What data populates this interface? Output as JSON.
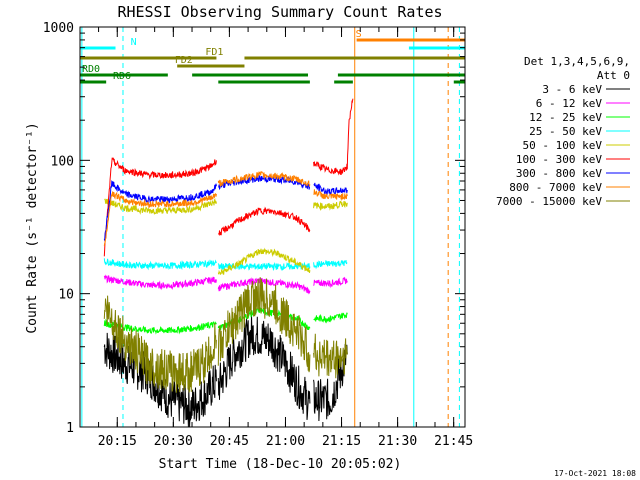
{
  "chart_data": {
    "type": "line",
    "title": "RHESSI Observing Summary Count Rates",
    "xlabel": "Start Time (18-Dec-10 20:05:02)",
    "ylabel": "Count Rate (s⁻¹ detector⁻¹)",
    "yscale": "log",
    "ylim": [
      1,
      1000
    ],
    "xlim_minutes": [
      0,
      103
    ],
    "x_ticks": [
      {
        "label": "20:15",
        "minutes": 9.97
      },
      {
        "label": "20:30",
        "minutes": 24.97
      },
      {
        "label": "20:45",
        "minutes": 39.97
      },
      {
        "label": "21:00",
        "minutes": 54.97
      },
      {
        "label": "21:15",
        "minutes": 69.97
      },
      {
        "label": "21:30",
        "minutes": 84.97
      },
      {
        "label": "21:45",
        "minutes": 99.97
      }
    ],
    "y_ticks": [
      {
        "label": "1",
        "value": 1
      },
      {
        "label": "10",
        "value": 10
      },
      {
        "label": "100",
        "value": 100
      },
      {
        "label": "1000",
        "value": 1000
      }
    ],
    "legend": {
      "placement": "right",
      "header": [
        "Det 1,3,4,5,6,9,",
        "Att 0"
      ]
    },
    "series": [
      {
        "name": "3 - 6 keV",
        "color": "#000000",
        "segments": [
          {
            "x": [
              6.5,
              12,
              18,
              24,
              30,
              34,
              36.5
            ],
            "y": [
              4,
              3,
              2.5,
              1.6,
              1.4,
              1.8,
              2.2
            ]
          },
          {
            "x": [
              37,
              41,
              46,
              51,
              55,
              58.5,
              61.5
            ],
            "y": [
              2,
              3.5,
              5,
              4.5,
              3,
              2,
              1.5
            ]
          },
          {
            "x": [
              62.5,
              67,
              71.5
            ],
            "y": [
              1.6,
              1.6,
              3.5
            ]
          }
        ]
      },
      {
        "name": "6 - 12 keV",
        "color": "#ff00ff",
        "segments": [
          {
            "x": [
              6.5,
              12,
              18,
              24,
              30,
              36.5
            ],
            "y": [
              13,
              12.3,
              11.6,
              11.5,
              12,
              12.8
            ]
          },
          {
            "x": [
              37,
              43,
              48,
              53,
              58,
              61.5
            ],
            "y": [
              11,
              12,
              12.5,
              12,
              11.5,
              10.5
            ]
          },
          {
            "x": [
              62.5,
              67,
              71.5
            ],
            "y": [
              12,
              12,
              12.5
            ]
          }
        ]
      },
      {
        "name": "12 - 25 keV",
        "color": "#00ff00",
        "segments": [
          {
            "x": [
              6.5,
              12,
              18,
              24,
              30,
              36.5
            ],
            "y": [
              6,
              5.6,
              5.3,
              5.3,
              5.5,
              5.9
            ]
          },
          {
            "x": [
              37,
              43,
              48,
              53,
              58,
              61.5
            ],
            "y": [
              5.5,
              6.5,
              7.5,
              7,
              6.5,
              5.5
            ]
          },
          {
            "x": [
              62.5,
              67,
              71.5
            ],
            "y": [
              6.5,
              6.5,
              7
            ]
          }
        ]
      },
      {
        "name": "25 - 50 keV",
        "color": "#00ffff",
        "segments": [
          {
            "x": [
              6.5,
              12,
              18,
              24,
              30,
              36.5
            ],
            "y": [
              17.5,
              16.5,
              16.2,
              16.2,
              16.5,
              17
            ]
          },
          {
            "x": [
              37,
              61.5
            ],
            "y": [
              16,
              16
            ]
          },
          {
            "x": [
              62.5,
              67,
              71.5
            ],
            "y": [
              16.5,
              16.8,
              17
            ]
          }
        ]
      },
      {
        "name": "50 - 100 keV",
        "color": "#cccc00",
        "segments": [
          {
            "x": [
              6.5,
              12,
              18,
              24,
              30,
              36.5
            ],
            "y": [
              50,
              44,
              42,
              42,
              43,
              49
            ]
          },
          {
            "x": [
              37,
              43,
              48,
              53,
              58,
              61.5
            ],
            "y": [
              14,
              17,
              21,
              20,
              17,
              15
            ]
          },
          {
            "x": [
              62.5,
              67,
              71.5
            ],
            "y": [
              46,
              45,
              48
            ]
          }
        ]
      },
      {
        "name": "100 - 300 keV",
        "color": "#ff0000",
        "segments": [
          {
            "x": [
              6.5,
              8.5,
              12,
              18,
              24,
              30,
              35,
              36.5
            ],
            "y": [
              20,
              100,
              84,
              78,
              77,
              80,
              90,
              100
            ]
          },
          {
            "x": [
              37,
              43,
              48,
              53,
              58,
              61.5
            ],
            "y": [
              28,
              36,
              42,
              41,
              37,
              30
            ]
          },
          {
            "x": [
              62.5,
              66,
              70,
              71.5,
              72,
              73
            ],
            "y": [
              95,
              85,
              82,
              90,
              200,
              290
            ]
          }
        ]
      },
      {
        "name": "300 - 800 keV",
        "color": "#0000ff",
        "segments": [
          {
            "x": [
              6.5,
              8.5,
              12,
              18,
              24,
              30,
              35,
              36.5
            ],
            "y": [
              25,
              67,
              56,
              51,
              51,
              53,
              58,
              64
            ]
          },
          {
            "x": [
              37,
              43,
              48,
              53,
              58,
              61.5
            ],
            "y": [
              64,
              70,
              73,
              72,
              69,
              63
            ]
          },
          {
            "x": [
              62.5,
              66,
              71.5
            ],
            "y": [
              65,
              58,
              60
            ]
          }
        ]
      },
      {
        "name": "800 - 7000 keV",
        "color": "#ff8000",
        "segments": [
          {
            "x": [
              6.5,
              8.5,
              12,
              18,
              24,
              30,
              35,
              36.5
            ],
            "y": [
              22,
              57,
              50,
              47,
              47,
              48,
              52,
              56
            ]
          },
          {
            "x": [
              37,
              43,
              48,
              53,
              58,
              61.5
            ],
            "y": [
              67,
              73,
              78,
              76,
              72,
              66
            ]
          },
          {
            "x": [
              62.5,
              66,
              71.5
            ],
            "y": [
              58,
              53,
              54
            ]
          }
        ]
      },
      {
        "name": "7000 - 15000 keV",
        "color": "#808000",
        "segments": [
          {
            "x": [
              6.5,
              12,
              18,
              24,
              30,
              34,
              36.5
            ],
            "y": [
              8,
              4.5,
              3,
              2.6,
              2.6,
              3.2,
              4.5
            ]
          },
          {
            "x": [
              37,
              41,
              46,
              51,
              55,
              58.5,
              61.5
            ],
            "y": [
              4,
              6,
              9.5,
              9,
              6.5,
              5,
              3.5
            ]
          },
          {
            "x": [
              62.5,
              67,
              71.5
            ],
            "y": [
              3.5,
              3.2,
              3.5
            ]
          }
        ]
      }
    ],
    "flag_bars": [
      {
        "label": "N",
        "color": "#00ffff",
        "segments": [
          [
            0,
            9.5
          ],
          [
            88,
            103
          ]
        ]
      },
      {
        "label": "S",
        "color": "#ff8000",
        "segments": [
          [
            74,
            103
          ]
        ]
      },
      {
        "label": "FD1",
        "color": "#808000",
        "segments": [
          [
            0,
            36.5
          ],
          [
            44,
            103
          ]
        ]
      },
      {
        "label": "FD2",
        "color": "#808000",
        "segments": [
          [
            26,
            44
          ]
        ]
      },
      {
        "label": "RD0",
        "color": "#008000",
        "segments": [
          [
            0,
            23.5
          ],
          [
            30,
            61
          ],
          [
            69,
            103
          ]
        ]
      },
      {
        "label": "RD6",
        "color": "#008000",
        "segments": [
          [
            0,
            7
          ],
          [
            37,
            61.5
          ],
          [
            68,
            73
          ],
          [
            100,
            103
          ]
        ]
      }
    ],
    "vertical_lines": [
      {
        "minutes": 0.5,
        "color": "#00ffff",
        "style": "solid"
      },
      {
        "minutes": 11.5,
        "color": "#00ffff",
        "style": "dashed"
      },
      {
        "minutes": 73.5,
        "color": "#ff8000",
        "style": "solid"
      },
      {
        "minutes": 89.3,
        "color": "#00ffff",
        "style": "solid"
      },
      {
        "minutes": 98.5,
        "color": "#ff8000",
        "style": "dashed"
      },
      {
        "minutes": 101.5,
        "color": "#00ffff",
        "style": "dashed"
      }
    ],
    "footer_stamp": "17-Oct-2021 18:08"
  }
}
